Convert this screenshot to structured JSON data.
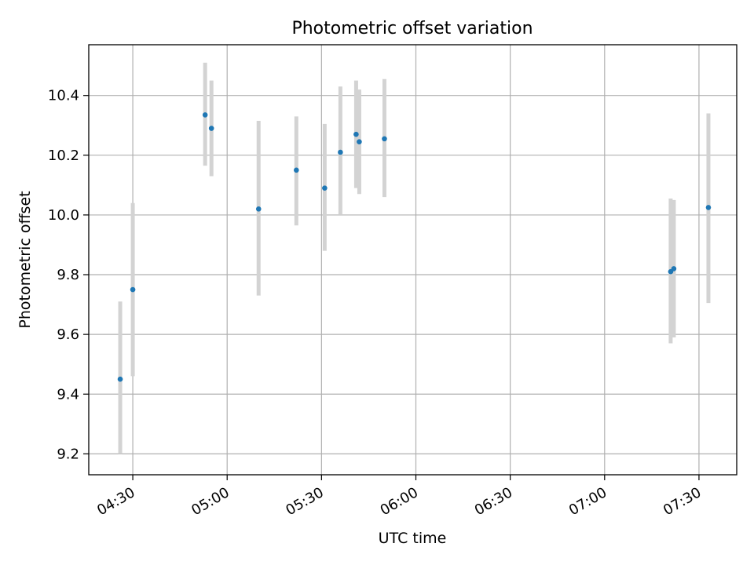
{
  "chart_data": {
    "type": "scatter",
    "title": "Photometric offset variation",
    "xlabel": "UTC time",
    "ylabel": "Photometric offset",
    "xlim": [
      "04:16",
      "07:42"
    ],
    "ylim": [
      9.13,
      10.57
    ],
    "xticks": [
      "04:30",
      "05:00",
      "05:30",
      "06:00",
      "06:30",
      "07:00",
      "07:30"
    ],
    "yticks": [
      9.2,
      9.4,
      9.6,
      9.8,
      10.0,
      10.2,
      10.4
    ],
    "grid": true,
    "marker_color": "#1f77b4",
    "errorbar_color": "#d3d3d3",
    "points": [
      {
        "time": "04:26",
        "value": 9.45,
        "low": 9.2,
        "high": 9.71
      },
      {
        "time": "04:30",
        "value": 9.75,
        "low": 9.46,
        "high": 10.04
      },
      {
        "time": "04:53",
        "value": 10.335,
        "low": 10.165,
        "high": 10.51
      },
      {
        "time": "04:55",
        "value": 10.29,
        "low": 10.13,
        "high": 10.45
      },
      {
        "time": "05:10",
        "value": 10.02,
        "low": 9.73,
        "high": 10.315
      },
      {
        "time": "05:22",
        "value": 10.15,
        "low": 9.965,
        "high": 10.33
      },
      {
        "time": "05:31",
        "value": 10.09,
        "low": 9.88,
        "high": 10.305
      },
      {
        "time": "05:36",
        "value": 10.21,
        "low": 10.0,
        "high": 10.43
      },
      {
        "time": "05:41",
        "value": 10.27,
        "low": 10.09,
        "high": 10.45
      },
      {
        "time": "05:42",
        "value": 10.245,
        "low": 10.07,
        "high": 10.42
      },
      {
        "time": "05:50",
        "value": 10.255,
        "low": 10.06,
        "high": 10.455
      },
      {
        "time": "07:21",
        "value": 9.81,
        "low": 9.57,
        "high": 10.055
      },
      {
        "time": "07:22",
        "value": 9.82,
        "low": 9.59,
        "high": 10.05
      },
      {
        "time": "07:33",
        "value": 10.025,
        "low": 9.705,
        "high": 10.34
      }
    ]
  }
}
